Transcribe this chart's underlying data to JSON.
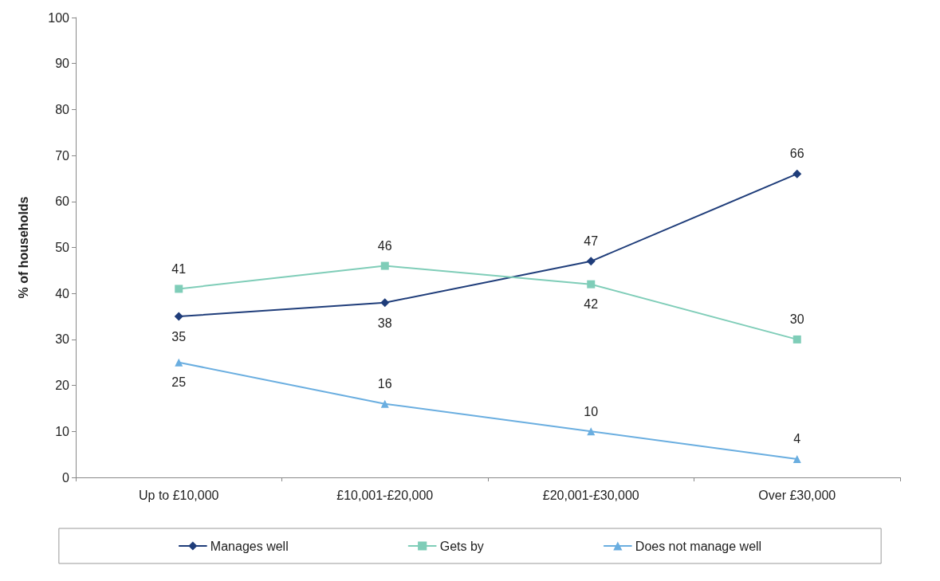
{
  "chart_data": {
    "type": "line",
    "ylabel": "% of households",
    "categories": [
      "Up to £10,000",
      "£10,001-£20,000",
      "£20,001-£30,000",
      "Over £30,000"
    ],
    "series": [
      {
        "name": "Manages well",
        "color": "#1f3d7a",
        "values": [
          35,
          38,
          47,
          66
        ],
        "marker": "diamond"
      },
      {
        "name": "Gets by",
        "color": "#7fcdb8",
        "values": [
          41,
          46,
          42,
          30
        ],
        "marker": "square"
      },
      {
        "name": "Does not manage well",
        "color": "#6aaee0",
        "values": [
          25,
          16,
          10,
          4
        ],
        "marker": "triangle"
      }
    ],
    "ylim": [
      0,
      100
    ],
    "yticks": [
      0,
      10,
      20,
      30,
      40,
      50,
      60,
      70,
      80,
      90,
      100
    ],
    "grid": false,
    "legend": "bottom",
    "data_labels": true,
    "line_style": "solid"
  }
}
